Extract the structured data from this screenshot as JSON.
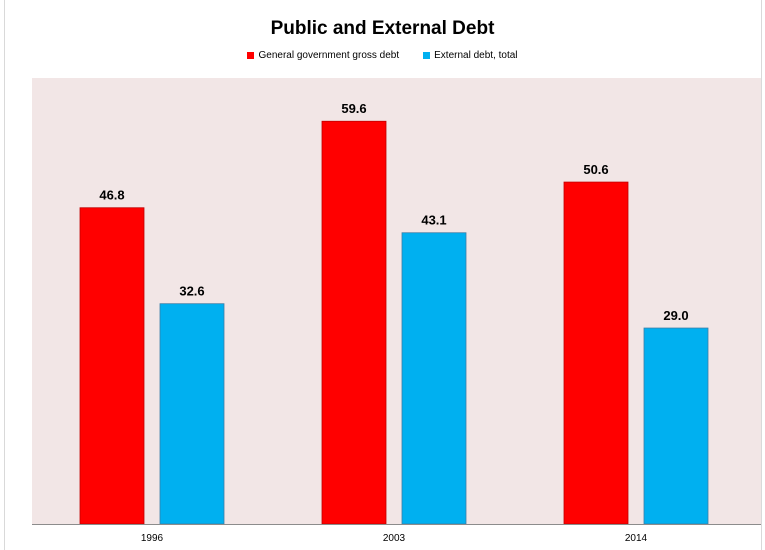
{
  "chart_data": {
    "type": "bar",
    "title": "Public and External Debt",
    "categories": [
      "1996",
      "2003",
      "2014"
    ],
    "series": [
      {
        "name": "General government gross debt",
        "values": [
          46.8,
          59.6,
          50.6
        ],
        "color": "#ff0000"
      },
      {
        "name": "External debt, total",
        "values": [
          32.6,
          43.1,
          29.0
        ],
        "color": "#00b0f0"
      }
    ],
    "value_labels": [
      [
        "46.8",
        "59.6",
        "50.6"
      ],
      [
        "32.6",
        "43.1",
        "29.0"
      ]
    ],
    "ylim": [
      0,
      66
    ],
    "plot_background": "#f2e6e6",
    "legend_position": "top-center",
    "grid": false
  }
}
